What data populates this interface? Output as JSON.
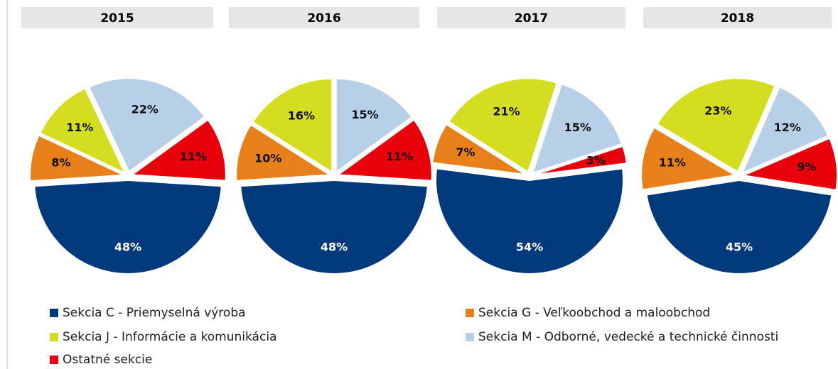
{
  "chart_data": {
    "type": "pie",
    "categories": [
      "Sekcia C - Priemyselná výroba",
      "Sekcia G - Veľkoobchod a maloobchod",
      "Sekcia J - Informácie a komunikácia",
      "Sekcia M - Odborné, vedecké a technické činnosti",
      "Ostatné sekcie"
    ],
    "colors": [
      "#003a7d",
      "#e8801a",
      "#d4dd1f",
      "#b8cfe8",
      "#e8000a"
    ],
    "series": [
      {
        "name": "2015",
        "values": [
          48,
          8,
          11,
          22,
          11
        ],
        "value_labels": [
          "48%",
          "8%",
          "11%",
          "22%",
          "11%"
        ]
      },
      {
        "name": "2016",
        "values": [
          48,
          10,
          16,
          15,
          11
        ],
        "value_labels": [
          "48%",
          "10%",
          "16%",
          "15%",
          "11%"
        ]
      },
      {
        "name": "2017",
        "values": [
          54,
          7,
          21,
          15,
          3
        ],
        "value_labels": [
          "54%",
          "7%",
          "21%",
          "15%",
          "3%"
        ]
      },
      {
        "name": "2018",
        "values": [
          45,
          11,
          23,
          12,
          9
        ],
        "value_labels": [
          "45%",
          "11%",
          "23%",
          "12%",
          "9%"
        ]
      }
    ]
  }
}
